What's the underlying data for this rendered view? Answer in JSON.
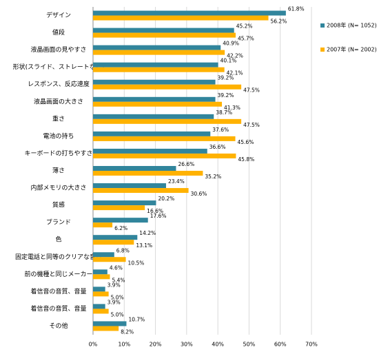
{
  "chart_data": {
    "type": "bar",
    "orientation": "horizontal",
    "categories": [
      "デザイン",
      "値段",
      "液晶画面の見やすさ",
      "形状(スライド、ストレートなど)",
      "レスポンス、反応速度",
      "液晶画面の大きさ",
      "重さ",
      "電池の持ち",
      "キーボードの打ちやすさ",
      "薄さ",
      "内部メモリの大きさ",
      "質感",
      "ブランド",
      "色",
      "固定電話と同等のクリアな音質",
      "前の機種と同じメーカー",
      "着信音の音質、音量",
      "着信音の音質、音量",
      "その他"
    ],
    "series": [
      {
        "name": "2008年 (N= 1052)",
        "color": "#31859c",
        "values": [
          61.8,
          45.2,
          40.9,
          40.1,
          39.2,
          39.2,
          38.7,
          37.6,
          36.6,
          26.6,
          23.4,
          20.2,
          17.6,
          14.2,
          6.8,
          4.6,
          3.9,
          3.9,
          10.7
        ],
        "value_labels": [
          "61.8%",
          "45.2%",
          "40.9%",
          "40.1%",
          "39.2%",
          "39.2%",
          "38.7%",
          "37.6%",
          "36.6%",
          "26.6%",
          "23.4%",
          "20.2%",
          "17.6%",
          "14.2%",
          "6.8%",
          "4.6%",
          "3.9%",
          "3.9%",
          "10.7%"
        ]
      },
      {
        "name": "2007年 (N= 2002)",
        "color": "#ffb200",
        "values": [
          56.2,
          45.7,
          42.2,
          42.1,
          47.5,
          41.3,
          47.5,
          45.6,
          45.8,
          35.2,
          30.6,
          16.6,
          6.2,
          13.1,
          10.5,
          5.4,
          5.0,
          5.0,
          8.2
        ],
        "value_labels": [
          "56.2%",
          "45.7%",
          "42.2%",
          "42.1%",
          "47.5%",
          "41.3%",
          "47.5%",
          "45.6%",
          "45.8%",
          "35.2%",
          "30.6%",
          "16.6%",
          "6.2%",
          "13.1%",
          "10.5%",
          "5.4%",
          "5.0%",
          "5.0%",
          "8.2%"
        ]
      }
    ],
    "xlim": [
      0,
      70
    ],
    "xticks": [
      {
        "value": 0,
        "label": "0%"
      },
      {
        "value": 10,
        "label": "10%"
      },
      {
        "value": 20,
        "label": "20%"
      },
      {
        "value": 30,
        "label": "30%"
      },
      {
        "value": 40,
        "label": "40%"
      },
      {
        "value": 50,
        "label": "50%"
      },
      {
        "value": 60,
        "label": "60%"
      },
      {
        "value": 70,
        "label": "70%"
      }
    ],
    "grid": true,
    "legend": "right"
  }
}
